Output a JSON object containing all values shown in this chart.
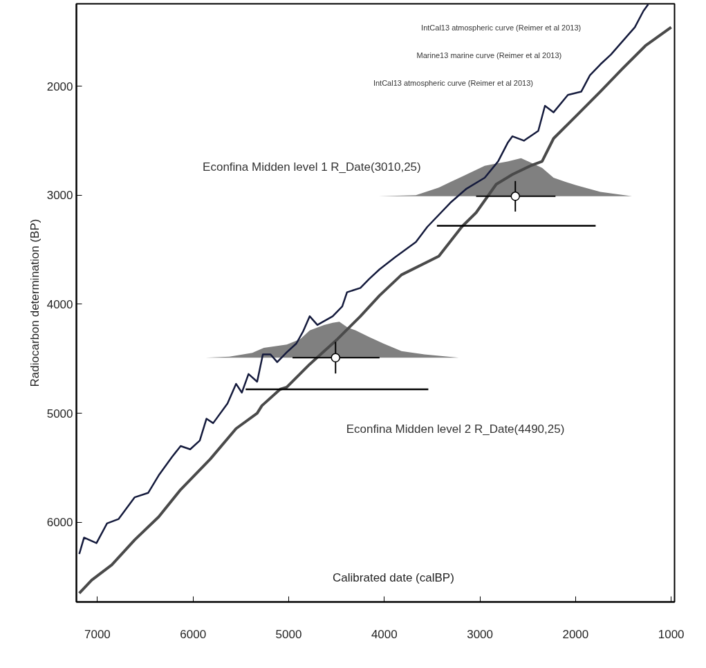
{
  "chart_data": {
    "type": "line",
    "xlabel": "Calibrated date (calBP)",
    "ylabel": "Radiocarbon determination (BP)",
    "xlim": [
      7220,
      965
    ],
    "ylim": [
      6730,
      1245
    ],
    "xticks": [
      7000,
      6000,
      5000,
      4000,
      3000,
      2000,
      1000
    ],
    "yticks": [
      2000,
      3000,
      4000,
      5000,
      6000
    ],
    "annotations": [
      "IntCal13 atmospheric curve (Reimer et al 2013)",
      "Marine13 marine curve (Reimer et al 2013)",
      "IntCal13 atmospheric curve (Reimer et al 2013)",
      "Econfina Midden level 1 R_Date(3010,25)",
      "Econfina Midden level 2 R_Date(4490,25)"
    ],
    "series": [
      {
        "type": "area",
        "color": "#808080",
        "x": [
          5870,
          5620,
          5380,
          5260,
          5020,
          4880,
          4780,
          4630,
          4540,
          4470,
          4390,
          4300,
          4160,
          4010,
          3820,
          3580,
          3220
        ],
        "values": [
          4490,
          4480,
          4445,
          4400,
          4370,
          4320,
          4240,
          4190,
          4170,
          4160,
          4210,
          4240,
          4300,
          4360,
          4430,
          4460,
          4490
        ]
      },
      {
        "type": "area",
        "color": "#808080",
        "x": [
          4060,
          3670,
          3430,
          3310,
          3140,
          2950,
          2830,
          2710,
          2570,
          2470,
          2350,
          2230,
          2100,
          1990,
          1740,
          1410
        ],
        "values": [
          3010,
          3000,
          2930,
          2880,
          2810,
          2730,
          2710,
          2690,
          2660,
          2700,
          2750,
          2840,
          2880,
          2910,
          2970,
          3010
        ]
      },
      {
        "color": "#141a3c",
        "x": [
          7190,
          7140,
          7010,
          6900,
          6780,
          6610,
          6470,
          6360,
          6220,
          6130,
          6030,
          5930,
          5860,
          5790,
          5640,
          5550,
          5490,
          5420,
          5330,
          5270,
          5190,
          5120,
          5020,
          4920,
          4850,
          4780,
          4700,
          4540,
          4440,
          4390,
          4250,
          4160,
          4050,
          3890,
          3670,
          3550,
          3310,
          3140,
          2950,
          2810,
          2710,
          2660,
          2540,
          2390,
          2320,
          2230,
          2080,
          1940,
          1850,
          1740,
          1630,
          1510,
          1380,
          1290,
          1240
        ],
        "values": [
          6290,
          6140,
          6190,
          6010,
          5970,
          5770,
          5730,
          5570,
          5400,
          5300,
          5330,
          5250,
          5050,
          5090,
          4910,
          4730,
          4810,
          4640,
          4710,
          4460,
          4460,
          4530,
          4440,
          4360,
          4250,
          4110,
          4190,
          4110,
          4020,
          3890,
          3850,
          3770,
          3680,
          3570,
          3430,
          3290,
          3070,
          2940,
          2840,
          2690,
          2520,
          2460,
          2500,
          2410,
          2180,
          2240,
          2080,
          2050,
          1900,
          1800,
          1710,
          1590,
          1460,
          1310,
          1250
        ]
      },
      {
        "color": "#4a4a4a",
        "x": [
          7190,
          7060,
          6850,
          6610,
          6360,
          6130,
          5820,
          5550,
          5330,
          5280,
          5090,
          5020,
          4780,
          4490,
          4250,
          4050,
          3820,
          3430,
          3190,
          3040,
          2830,
          2660,
          2470,
          2350,
          2230,
          1990,
          1740,
          1510,
          1270,
          1000
        ],
        "values": [
          6650,
          6530,
          6390,
          6160,
          5950,
          5700,
          5420,
          5140,
          5000,
          4930,
          4780,
          4760,
          4550,
          4320,
          4110,
          3920,
          3730,
          3560,
          3290,
          3160,
          2900,
          2810,
          2730,
          2690,
          2480,
          2270,
          2050,
          1840,
          1630,
          1460
        ]
      },
      {
        "color": "#000000",
        "x": [
          5450,
          3540
        ],
        "values": [
          4780,
          4780
        ]
      },
      {
        "color": "#000000",
        "x": [
          3450,
          1790
        ],
        "values": [
          3280,
          3280
        ]
      },
      {
        "type": "scatter",
        "color": "#ffffff",
        "x": [
          2630,
          4510
        ],
        "values": [
          3010,
          4490
        ],
        "errors": [
          140,
          145
        ],
        "xerrors": [
          [
            2210,
            3040
          ],
          [
            4050,
            4960
          ]
        ]
      }
    ]
  }
}
